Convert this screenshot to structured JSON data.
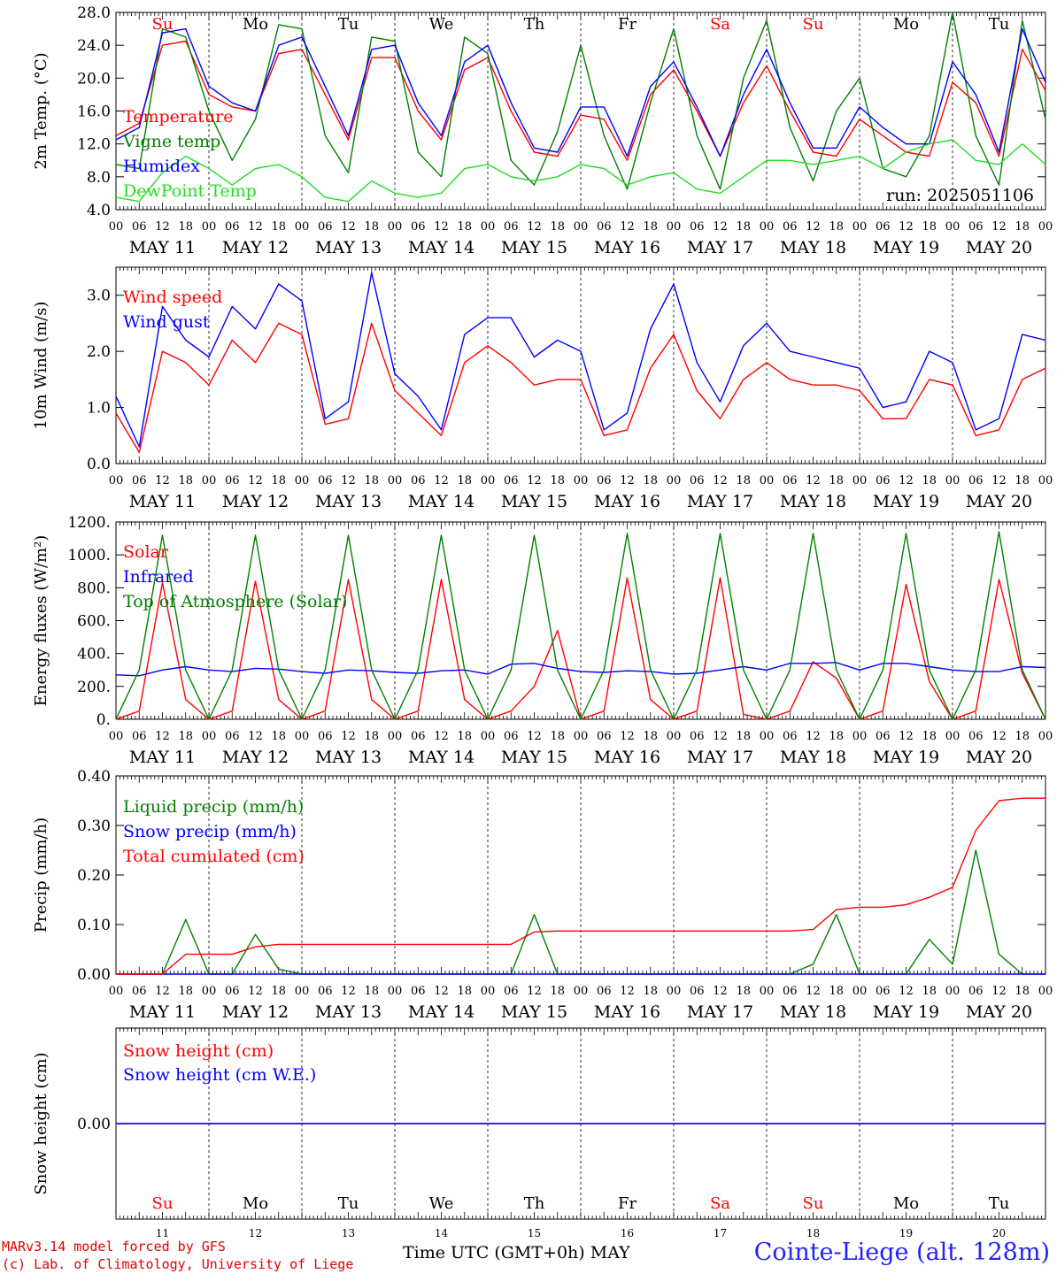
{
  "chart_data": [
    {
      "type": "line",
      "ylabel": "2m Temp. (°C)",
      "ylim": [
        4.0,
        28.0
      ],
      "yticks": [
        "4.0",
        "8.0",
        "12.0",
        "16.0",
        "20.0",
        "24.0",
        "28.0"
      ],
      "annotation": "run: 2025051106",
      "x_hours": [
        0,
        6,
        12,
        18,
        24,
        30,
        36,
        42,
        48,
        54,
        60,
        66,
        72,
        78,
        84,
        90,
        96,
        102,
        108,
        114,
        120,
        126,
        132,
        138,
        144,
        150,
        156,
        162,
        168,
        174,
        180,
        186,
        192,
        198,
        204,
        210,
        216,
        222,
        228,
        234,
        240
      ],
      "series": [
        {
          "name": "Temperature",
          "color": "#ff0000",
          "values": [
            13,
            14.5,
            24,
            24.5,
            18,
            16.5,
            16,
            23,
            23.5,
            18,
            12.5,
            22.5,
            22.5,
            16,
            12.5,
            21,
            22.5,
            16,
            11,
            10.5,
            15.5,
            15,
            10,
            18,
            21,
            16,
            10.5,
            17,
            21.5,
            16,
            11,
            10.5,
            15,
            13,
            11,
            10.5,
            19.5,
            17,
            10.5,
            23.5,
            18.5
          ]
        },
        {
          "name": "Vigne temp",
          "color": "#008000",
          "values": [
            9.5,
            9,
            26,
            25,
            16,
            10,
            15,
            26.5,
            26,
            13,
            8.5,
            25,
            24.5,
            11,
            8,
            25,
            23,
            10,
            7,
            13.5,
            24,
            13,
            6.5,
            17,
            26,
            13,
            6.5,
            20,
            27,
            14,
            7.5,
            16,
            20,
            9,
            8,
            13,
            28,
            13,
            7,
            27,
            15
          ]
        },
        {
          "name": "Humidex",
          "color": "#0000ff",
          "values": [
            12.5,
            14,
            25.5,
            26,
            19,
            17,
            16,
            24,
            25,
            19,
            13,
            23.5,
            24,
            17,
            13,
            22,
            24,
            17,
            11.5,
            11,
            16.5,
            16.5,
            10.5,
            19,
            22,
            16.5,
            10.5,
            18,
            23.5,
            17,
            11.5,
            11.5,
            16.5,
            14,
            12,
            12,
            22,
            18,
            11,
            26,
            19.5
          ]
        },
        {
          "name": "DewPoint Temp",
          "color": "#22dd22",
          "values": [
            5.5,
            5,
            8.5,
            10.5,
            9,
            7,
            9,
            9.5,
            8,
            5.5,
            5,
            7.5,
            6,
            5.5,
            6,
            9,
            9.5,
            8,
            7.5,
            8,
            9.5,
            9,
            7,
            8,
            8.5,
            6.5,
            6,
            8,
            10,
            10,
            9.5,
            10,
            10.5,
            9,
            11,
            12,
            12.5,
            10,
            9.5,
            12,
            9.5
          ]
        }
      ]
    },
    {
      "type": "line",
      "ylabel": "10m Wind (m/s)",
      "ylim": [
        0.0,
        3.5
      ],
      "yticks": [
        "0.0",
        "1.0",
        "2.0",
        "3.0"
      ],
      "x_hours": [
        0,
        6,
        12,
        18,
        24,
        30,
        36,
        42,
        48,
        54,
        60,
        66,
        72,
        78,
        84,
        90,
        96,
        102,
        108,
        114,
        120,
        126,
        132,
        138,
        144,
        150,
        156,
        162,
        168,
        174,
        180,
        186,
        192,
        198,
        204,
        210,
        216,
        222,
        228,
        234,
        240
      ],
      "series": [
        {
          "name": "Wind speed",
          "color": "#ff0000",
          "values": [
            0.9,
            0.2,
            2.0,
            1.8,
            1.4,
            2.2,
            1.8,
            2.5,
            2.3,
            0.7,
            0.8,
            2.5,
            1.3,
            0.9,
            0.5,
            1.8,
            2.1,
            1.8,
            1.4,
            1.5,
            1.5,
            0.5,
            0.6,
            1.7,
            2.3,
            1.3,
            0.8,
            1.5,
            1.8,
            1.5,
            1.4,
            1.4,
            1.3,
            0.8,
            0.8,
            1.5,
            1.4,
            0.5,
            0.6,
            1.5,
            1.7
          ]
        },
        {
          "name": "Wind gust",
          "color": "#0000ff",
          "values": [
            1.2,
            0.3,
            2.8,
            2.2,
            1.9,
            2.8,
            2.4,
            3.2,
            2.9,
            0.8,
            1.1,
            3.4,
            1.6,
            1.2,
            0.6,
            2.3,
            2.6,
            2.6,
            1.9,
            2.2,
            2.0,
            0.6,
            0.9,
            2.4,
            3.2,
            1.8,
            1.1,
            2.1,
            2.5,
            2.0,
            1.9,
            1.8,
            1.7,
            1.0,
            1.1,
            2.0,
            1.8,
            0.6,
            0.8,
            2.3,
            2.2
          ]
        }
      ]
    },
    {
      "type": "line",
      "ylabel": "Energy fluxes (W/m²)",
      "ylim": [
        0,
        1200
      ],
      "yticks": [
        "0.",
        "200.",
        "400.",
        "600.",
        "800.",
        "1000.",
        "1200."
      ],
      "x_hours": [
        0,
        6,
        12,
        18,
        24,
        30,
        36,
        42,
        48,
        54,
        60,
        66,
        72,
        78,
        84,
        90,
        96,
        102,
        108,
        114,
        120,
        126,
        132,
        138,
        144,
        150,
        156,
        162,
        168,
        174,
        180,
        186,
        192,
        198,
        204,
        210,
        216,
        222,
        228,
        234,
        240
      ],
      "series": [
        {
          "name": "Solar",
          "color": "#ff0000",
          "values": [
            0,
            50,
            830,
            120,
            0,
            50,
            840,
            120,
            0,
            50,
            850,
            120,
            0,
            50,
            850,
            120,
            0,
            50,
            200,
            540,
            0,
            50,
            860,
            120,
            0,
            50,
            860,
            30,
            0,
            50,
            350,
            250,
            0,
            50,
            820,
            230,
            0,
            50,
            850,
            280,
            0
          ]
        },
        {
          "name": "Infrared",
          "color": "#0000ff",
          "values": [
            270,
            265,
            300,
            320,
            300,
            290,
            310,
            305,
            290,
            280,
            300,
            295,
            285,
            280,
            295,
            300,
            275,
            335,
            340,
            310,
            290,
            285,
            295,
            290,
            275,
            280,
            300,
            320,
            300,
            340,
            340,
            345,
            300,
            340,
            340,
            320,
            300,
            290,
            290,
            320,
            315
          ]
        },
        {
          "name": "Top of Atmosphere (Solar)",
          "color": "#008000",
          "values": [
            0,
            300,
            1120,
            300,
            0,
            300,
            1120,
            300,
            0,
            300,
            1120,
            300,
            0,
            300,
            1120,
            300,
            0,
            300,
            1120,
            300,
            0,
            300,
            1130,
            300,
            0,
            300,
            1130,
            300,
            0,
            300,
            1130,
            300,
            0,
            300,
            1130,
            300,
            0,
            300,
            1140,
            300,
            0
          ]
        }
      ]
    },
    {
      "type": "line",
      "ylabel": "Precip (mm/h)",
      "ylim": [
        0.0,
        0.4
      ],
      "yticks": [
        "0.00",
        "0.10",
        "0.20",
        "0.30",
        "0.40"
      ],
      "x_hours": [
        0,
        6,
        12,
        18,
        24,
        30,
        36,
        42,
        48,
        54,
        60,
        66,
        72,
        78,
        84,
        90,
        96,
        102,
        108,
        114,
        120,
        126,
        132,
        138,
        144,
        150,
        156,
        162,
        168,
        174,
        180,
        186,
        192,
        198,
        204,
        210,
        216,
        222,
        228,
        234,
        240
      ],
      "series": [
        {
          "name": "Liquid precip (mm/h)",
          "color": "#008000",
          "values": [
            0,
            0,
            0,
            0.11,
            0,
            0,
            0.08,
            0.01,
            0,
            0,
            0,
            0,
            0,
            0,
            0,
            0,
            0,
            0,
            0.12,
            0,
            0,
            0,
            0,
            0,
            0,
            0,
            0,
            0,
            0,
            0,
            0.02,
            0.12,
            0,
            0,
            0,
            0.07,
            0.02,
            0.25,
            0.04,
            0,
            0
          ]
        },
        {
          "name": "Snow precip (mm/h)",
          "color": "#0000ff",
          "values": [
            0,
            0,
            0,
            0,
            0,
            0,
            0,
            0,
            0,
            0,
            0,
            0,
            0,
            0,
            0,
            0,
            0,
            0,
            0,
            0,
            0,
            0,
            0,
            0,
            0,
            0,
            0,
            0,
            0,
            0,
            0,
            0,
            0,
            0,
            0,
            0,
            0,
            0,
            0,
            0,
            0
          ]
        },
        {
          "name": "Total cumulated (cm)",
          "color": "#ff0000",
          "values": [
            0,
            0,
            0,
            0.04,
            0.04,
            0.04,
            0.055,
            0.06,
            0.06,
            0.06,
            0.06,
            0.06,
            0.06,
            0.06,
            0.06,
            0.06,
            0.06,
            0.06,
            0.085,
            0.087,
            0.087,
            0.087,
            0.087,
            0.087,
            0.087,
            0.087,
            0.087,
            0.087,
            0.087,
            0.087,
            0.09,
            0.13,
            0.135,
            0.135,
            0.14,
            0.155,
            0.175,
            0.29,
            0.35,
            0.355,
            0.355
          ]
        }
      ]
    },
    {
      "type": "line",
      "ylabel": "Snow height (cm)",
      "ylim": [
        -0.5,
        0.5
      ],
      "yticks": [
        "0.00"
      ],
      "x_hours": [
        0,
        240
      ],
      "series": [
        {
          "name": "Snow height (cm)",
          "color": "#ff0000",
          "values": [
            0,
            0
          ]
        },
        {
          "name": "Snow height (cm W.E.)",
          "color": "#0000ff",
          "values": [
            0,
            0
          ]
        }
      ]
    }
  ],
  "x_axis": {
    "hour_labels": [
      "00",
      "06",
      "12",
      "18"
    ],
    "end_label": "00",
    "dates": [
      "MAY 11",
      "MAY 12",
      "MAY 13",
      "MAY 14",
      "MAY 15",
      "MAY 16",
      "MAY 17",
      "MAY 18",
      "MAY 19",
      "MAY 20"
    ],
    "day_numbers": [
      "11",
      "12",
      "13",
      "14",
      "15",
      "16",
      "17",
      "18",
      "19",
      "20"
    ],
    "weekdays": [
      "Su",
      "Mo",
      "Tu",
      "We",
      "Th",
      "Fr",
      "Sa",
      "Su",
      "Mo",
      "Tu"
    ],
    "weekday_colors": [
      "#ff0000",
      "#000000",
      "#000000",
      "#000000",
      "#000000",
      "#000000",
      "#ff0000",
      "#ff0000",
      "#000000",
      "#000000"
    ],
    "title": "Time UTC (GMT+0h)",
    "month": "MAY"
  },
  "footer": {
    "credit_line1": "MARv3.14 model forced by GFS",
    "credit_line2": "(c) Lab. of Climatology, University of Liege",
    "station": "Cointe-Liege (alt. 128m)"
  }
}
